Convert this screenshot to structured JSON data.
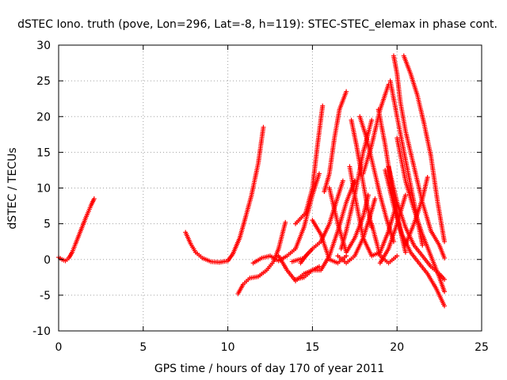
{
  "chart_data": {
    "type": "scatter",
    "title": "dSTEC Iono. truth (pove, Lon=296, Lat=-8, h=119): STEC-STEC_elemax in phase cont.",
    "xlabel": "GPS time / hours of day 170 of year 2011",
    "ylabel": "dSTEC  / TECUs",
    "xlim": [
      0,
      25
    ],
    "ylim": [
      -10,
      30
    ],
    "xticks": [
      0,
      5,
      10,
      15,
      20,
      25
    ],
    "yticks": [
      -10,
      -5,
      0,
      5,
      10,
      15,
      20,
      25,
      30
    ],
    "xtick_labels": [
      "0",
      "5",
      "10",
      "15",
      "20",
      "25"
    ],
    "ytick_labels": [
      "-10",
      "-5",
      "0",
      "5",
      "10",
      "15",
      "20",
      "25",
      "30"
    ],
    "grid": true,
    "marker": "plus",
    "color": "#ff0000",
    "series": [
      {
        "x": [
          0.0,
          0.2,
          0.4,
          0.6,
          0.8,
          1.0,
          1.3,
          1.6,
          1.9,
          2.1
        ],
        "y": [
          0.3,
          0.0,
          -0.2,
          0.2,
          1.0,
          2.2,
          4.0,
          5.8,
          7.5,
          8.5
        ]
      },
      {
        "x": [
          7.5,
          7.8,
          8.1,
          8.5,
          9.0,
          9.5,
          10.0,
          10.3,
          10.7,
          11.0,
          11.4,
          11.8,
          12.1
        ],
        "y": [
          3.8,
          2.2,
          1.0,
          0.2,
          -0.3,
          -0.4,
          -0.2,
          0.8,
          3.0,
          5.5,
          9.0,
          13.5,
          18.5
        ]
      },
      {
        "x": [
          10.6,
          10.9,
          11.3,
          11.8,
          12.3,
          12.7,
          13.0,
          13.4
        ],
        "y": [
          -4.8,
          -3.5,
          -2.6,
          -2.4,
          -1.5,
          -0.3,
          1.5,
          5.2
        ]
      },
      {
        "x": [
          11.5,
          12.0,
          12.5,
          13.0,
          13.5,
          14.0,
          14.5,
          15.0,
          15.4
        ],
        "y": [
          -0.5,
          0.2,
          0.5,
          -0.2,
          0.5,
          1.5,
          4.5,
          9.0,
          12.0
        ]
      },
      {
        "x": [
          13.0,
          13.5,
          14.0,
          14.5,
          15.0,
          15.4
        ],
        "y": [
          0.5,
          -1.5,
          -3.0,
          -2.0,
          -1.5,
          -1.0
        ]
      },
      {
        "x": [
          14.0,
          14.6,
          15.0,
          15.3,
          15.6
        ],
        "y": [
          5.0,
          6.5,
          10.0,
          16.0,
          21.5
        ]
      },
      {
        "x": [
          13.8,
          14.5,
          15.0,
          15.5,
          16.0,
          16.4,
          16.8
        ],
        "y": [
          -0.3,
          0.2,
          1.5,
          2.5,
          5.0,
          8.0,
          11.0
        ]
      },
      {
        "x": [
          15.0,
          15.5,
          16.0,
          16.5,
          17.0
        ],
        "y": [
          5.5,
          3.5,
          0.0,
          -0.5,
          0.5
        ]
      },
      {
        "x": [
          14.0,
          14.5,
          15.0,
          15.5,
          16.0,
          16.5,
          17.0,
          17.5
        ],
        "y": [
          -2.8,
          -2.5,
          -1.5,
          -1.5,
          0.5,
          4.0,
          8.0,
          11.0
        ]
      },
      {
        "x": [
          15.7,
          16.0,
          16.3,
          16.6,
          17.0
        ],
        "y": [
          9.5,
          12.0,
          17.0,
          21.0,
          23.5
        ]
      },
      {
        "x": [
          16.0,
          16.5,
          17.0,
          17.5,
          18.0,
          18.3
        ],
        "y": [
          10.0,
          5.0,
          1.0,
          3.0,
          6.0,
          9.0
        ]
      },
      {
        "x": [
          16.7,
          17.0,
          17.5,
          18.0,
          18.5
        ],
        "y": [
          1.5,
          4.0,
          9.0,
          15.0,
          19.5
        ]
      },
      {
        "x": [
          16.5,
          17.0,
          17.5,
          18.0,
          18.4,
          18.7
        ],
        "y": [
          0.5,
          -0.5,
          0.5,
          3.0,
          6.0,
          8.5
        ]
      },
      {
        "x": [
          17.3,
          17.6,
          17.9,
          18.2,
          18.5
        ],
        "y": [
          19.5,
          16.0,
          12.0,
          8.0,
          4.5
        ]
      },
      {
        "x": [
          17.2,
          17.5,
          18.0,
          18.5,
          19.0,
          19.5,
          20.0
        ],
        "y": [
          13.0,
          9.0,
          3.0,
          0.5,
          1.0,
          4.0,
          8.0
        ]
      },
      {
        "x": [
          17.8,
          18.2,
          18.6,
          19.0,
          19.4,
          19.8
        ],
        "y": [
          20.0,
          17.0,
          13.0,
          9.0,
          5.5,
          2.5
        ]
      },
      {
        "x": [
          18.5,
          19.0,
          19.5,
          20.0
        ],
        "y": [
          5.0,
          0.5,
          -0.5,
          0.5
        ]
      },
      {
        "x": [
          18.0,
          18.5,
          19.0,
          19.5
        ],
        "y": [
          12.0,
          16.0,
          21.0,
          24.5
        ]
      },
      {
        "x": [
          18.9,
          19.3,
          19.7,
          20.1,
          20.5
        ],
        "y": [
          21.0,
          16.0,
          10.0,
          5.0,
          1.0
        ]
      },
      {
        "x": [
          19.3,
          19.8,
          20.3,
          20.8,
          21.3,
          21.8,
          22.3,
          22.8
        ],
        "y": [
          12.5,
          7.5,
          3.5,
          1.0,
          -0.5,
          -2.0,
          -4.0,
          -6.5
        ]
      },
      {
        "x": [
          19.6,
          20.0,
          20.5,
          21.0,
          21.5
        ],
        "y": [
          25.0,
          20.0,
          14.0,
          8.0,
          2.0
        ]
      },
      {
        "x": [
          19.8,
          20.0,
          20.2,
          20.5,
          21.0,
          21.5,
          22.0,
          22.5,
          22.8
        ],
        "y": [
          28.5,
          26.0,
          22.0,
          18.0,
          13.0,
          8.0,
          4.0,
          2.0,
          0.2
        ]
      },
      {
        "x": [
          20.4,
          20.8,
          21.2,
          21.6,
          22.0,
          22.4,
          22.8
        ],
        "y": [
          28.5,
          26.0,
          23.0,
          19.0,
          14.5,
          8.0,
          2.5
        ]
      },
      {
        "x": [
          19.5,
          20.0,
          20.5,
          21.0,
          21.5,
          22.0,
          22.5,
          22.8
        ],
        "y": [
          13.0,
          8.0,
          4.5,
          2.0,
          0.5,
          -1.0,
          -2.0,
          -2.8
        ]
      },
      {
        "x": [
          20.0,
          20.5,
          21.0,
          21.5,
          22.0,
          22.5,
          22.8
        ],
        "y": [
          17.0,
          11.0,
          7.0,
          3.5,
          0.5,
          -2.5,
          -4.5
        ]
      },
      {
        "x": [
          20.5,
          21.0,
          21.5,
          21.8
        ],
        "y": [
          2.0,
          5.0,
          8.5,
          11.5
        ]
      },
      {
        "x": [
          19.0,
          19.5,
          20.0,
          20.5
        ],
        "y": [
          -0.5,
          1.5,
          5.0,
          9.0
        ]
      },
      {
        "x": [
          14.3,
          14.6,
          15.0
        ],
        "y": [
          -0.5,
          0.5,
          1.5
        ]
      }
    ]
  }
}
